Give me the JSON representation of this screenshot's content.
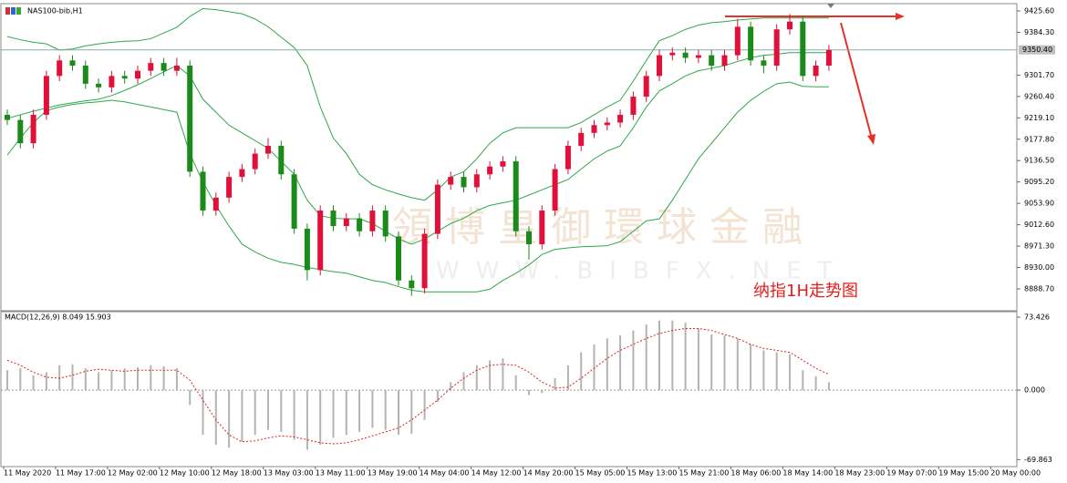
{
  "chart_data": [
    {
      "type": "candlestick",
      "title": "NAS100-bib,H1",
      "open": [
        9225,
        9215,
        9170,
        9225,
        9300,
        9330,
        9320,
        9285,
        9278,
        9300,
        9295,
        9310,
        9325,
        9310,
        9320,
        9115,
        9040,
        9065,
        9105,
        9120,
        9150,
        9165,
        9110,
        9005,
        8925,
        9040,
        9010,
        9025,
        9000,
        9040,
        8990,
        8905,
        8890,
        8995,
        9090,
        9105,
        9085,
        9110,
        9125,
        9135,
        9000,
        8975,
        9040,
        9120,
        9165,
        9190,
        9205,
        9210,
        9225,
        9260,
        9300,
        9340,
        9345,
        9335,
        9340,
        9320,
        9340,
        9395,
        9330,
        9320,
        9390,
        9405,
        9300,
        9320
      ],
      "high": [
        9235,
        9225,
        9235,
        9310,
        9340,
        9340,
        9330,
        9295,
        9310,
        9310,
        9320,
        9335,
        9335,
        9335,
        9330,
        9125,
        9075,
        9115,
        9130,
        9160,
        9180,
        9175,
        9120,
        9015,
        9050,
        9050,
        9035,
        9035,
        9050,
        9050,
        9000,
        8915,
        9005,
        9100,
        9115,
        9115,
        9120,
        9135,
        9145,
        9145,
        9010,
        9050,
        9130,
        9175,
        9200,
        9215,
        9220,
        9235,
        9270,
        9310,
        9350,
        9355,
        9355,
        9350,
        9350,
        9350,
        9410,
        9405,
        9340,
        9400,
        9420,
        9415,
        9330,
        9360
      ],
      "low": [
        9205,
        9160,
        9160,
        9215,
        9290,
        9310,
        9275,
        9268,
        9268,
        9285,
        9285,
        9300,
        9300,
        9300,
        9105,
        9030,
        9030,
        9055,
        9095,
        9110,
        9140,
        9100,
        8995,
        8905,
        8915,
        9000,
        9000,
        8990,
        8990,
        8980,
        8895,
        8875,
        8880,
        8985,
        9080,
        9075,
        9075,
        9100,
        9115,
        8990,
        8945,
        8965,
        9030,
        9110,
        9155,
        9180,
        9195,
        9200,
        9215,
        9250,
        9290,
        9330,
        9325,
        9325,
        9310,
        9310,
        9330,
        9320,
        9305,
        9310,
        9380,
        9290,
        9290,
        9310
      ],
      "close": [
        9215,
        9170,
        9225,
        9300,
        9330,
        9320,
        9285,
        9278,
        9300,
        9295,
        9310,
        9325,
        9310,
        9320,
        9115,
        9040,
        9065,
        9105,
        9120,
        9150,
        9165,
        9110,
        9005,
        8925,
        9040,
        9010,
        9025,
        9000,
        9040,
        8990,
        8905,
        8890,
        8995,
        9090,
        9105,
        9085,
        9110,
        9125,
        9135,
        9000,
        8975,
        9040,
        9120,
        9165,
        9190,
        9205,
        9210,
        9225,
        9260,
        9300,
        9340,
        9345,
        9335,
        9340,
        9320,
        9340,
        9395,
        9330,
        9320,
        9390,
        9405,
        9300,
        9320,
        9350
      ],
      "up_color": "#e0103a",
      "down_color": "#1a8a1a",
      "bands": {
        "color": "#2ea84a",
        "upper": [
          9376,
          9370,
          9365,
          9362,
          9350,
          9352,
          9358,
          9362,
          9365,
          9367,
          9368,
          9372,
          9383,
          9394,
          9415,
          9430,
          9428,
          9424,
          9420,
          9410,
          9395,
          9375,
          9355,
          9320,
          9240,
          9180,
          9150,
          9110,
          9090,
          9080,
          9072,
          9065,
          9060,
          9080,
          9105,
          9115,
          9140,
          9170,
          9190,
          9200,
          9200,
          9200,
          9200,
          9200,
          9210,
          9225,
          9240,
          9253,
          9290,
          9330,
          9368,
          9378,
          9390,
          9398,
          9403,
          9405,
          9408,
          9410,
          9412,
          9412,
          9412,
          9412,
          9412,
          9412
        ],
        "middle": [
          9218,
          9225,
          9232,
          9238,
          9244,
          9248,
          9252,
          9255,
          9262,
          9272,
          9283,
          9295,
          9308,
          9320,
          9300,
          9255,
          9230,
          9205,
          9190,
          9175,
          9160,
          9135,
          9110,
          9060,
          9030,
          9025,
          9024,
          9024,
          9015,
          9000,
          8985,
          8975,
          8985,
          9000,
          9015,
          9025,
          9040,
          9050,
          9055,
          9060,
          9070,
          9080,
          9090,
          9100,
          9120,
          9140,
          9155,
          9165,
          9200,
          9240,
          9271,
          9285,
          9300,
          9310,
          9315,
          9320,
          9328,
          9335,
          9340,
          9342,
          9345,
          9345,
          9345,
          9345
        ],
        "lower": [
          9147,
          9180,
          9210,
          9233,
          9240,
          9245,
          9248,
          9250,
          9253,
          9250,
          9245,
          9240,
          9235,
          9230,
          9150,
          9095,
          9050,
          9010,
          8975,
          8960,
          8948,
          8940,
          8936,
          8930,
          8926,
          8922,
          8919,
          8912,
          8905,
          8901,
          8893,
          8886,
          8883,
          8883,
          8883,
          8883,
          8883,
          8888,
          8905,
          8919,
          8935,
          8955,
          8965,
          8968,
          8970,
          8971,
          8972,
          8980,
          9000,
          9020,
          9024,
          9060,
          9100,
          9140,
          9170,
          9200,
          9230,
          9253,
          9270,
          9285,
          9288,
          9280,
          9279,
          9279
        ]
      },
      "current_price": {
        "value": 9350.4,
        "label": "9350.40"
      },
      "ylim": [
        8848.2,
        9437.9
      ],
      "yticks": [
        {
          "value": 9425.6,
          "label": "9425.60"
        },
        {
          "value": 9384.3,
          "label": "9384.30"
        },
        {
          "value": 9301.7,
          "label": "9301.70"
        },
        {
          "value": 9260.4,
          "label": "9260.40"
        },
        {
          "value": 9219.1,
          "label": "9219.10"
        },
        {
          "value": 9177.8,
          "label": "9177.80"
        },
        {
          "value": 9136.5,
          "label": "9136.50"
        },
        {
          "value": 9095.2,
          "label": "9095.20"
        },
        {
          "value": 9053.9,
          "label": "9053.90"
        },
        {
          "value": 9012.6,
          "label": "9012.60"
        },
        {
          "value": 8971.3,
          "label": "8971.30"
        },
        {
          "value": 8930,
          "label": "8930.00"
        },
        {
          "value": 8888.7,
          "label": "8888.70"
        }
      ],
      "watermark": [
        "領博皇御環球金融",
        "WWW.BIBFX.NET"
      ],
      "annotation": "纳指1H走势图"
    },
    {
      "type": "macd",
      "title": "MACD(12,26,9) 8.049 15.903",
      "histogram": [
        20,
        22,
        15,
        18,
        25,
        26,
        22,
        18,
        20,
        22,
        23,
        25,
        24,
        22,
        -15,
        -45,
        -55,
        -58,
        -52,
        -45,
        -40,
        -42,
        -50,
        -60,
        -55,
        -48,
        -45,
        -42,
        -38,
        -40,
        -45,
        -44,
        -30,
        -12,
        8,
        18,
        25,
        30,
        32,
        15,
        -5,
        -3,
        12,
        25,
        38,
        46,
        52,
        55,
        60,
        66,
        70,
        70,
        68,
        62,
        56,
        55,
        52,
        46,
        40,
        38,
        36,
        20,
        14,
        8.049
      ],
      "signal": [
        30,
        25,
        18,
        13,
        12,
        15,
        19,
        21,
        20,
        19,
        20,
        20,
        20,
        20,
        10,
        -10,
        -30,
        -45,
        -52,
        -51,
        -48,
        -46,
        -47,
        -50,
        -53,
        -54,
        -53,
        -50,
        -46,
        -42,
        -38,
        -30,
        -20,
        -10,
        2,
        12,
        20,
        25,
        26,
        25,
        18,
        8,
        2,
        3,
        12,
        22,
        32,
        40,
        46,
        52,
        57,
        60,
        62,
        62,
        60,
        56,
        52,
        46,
        42,
        40,
        38,
        30,
        22,
        15.903
      ],
      "hist_color": "#b4b4b4",
      "signal_color": "#e02020",
      "ylim": [
        -76,
        78
      ],
      "yticks": [
        73.426,
        {
          "value": 0,
          "label": "0.000"
        },
        -69.863
      ],
      "time_labels": [
        "11 May 2020",
        "11 May 17:00",
        "12 May 02:00",
        "12 May 10:00",
        "12 May 18:00",
        "13 May 03:00",
        "13 May 11:00",
        "13 May 19:00",
        "14 May 04:00",
        "14 May 12:00",
        "14 May 20:00",
        "15 May 05:00",
        "15 May 13:00",
        "15 May 21:00",
        "18 May 06:00",
        "18 May 14:00",
        "18 May 23:00",
        "19 May 07:00",
        "19 May 15:00",
        "20 May 00:00"
      ]
    }
  ]
}
